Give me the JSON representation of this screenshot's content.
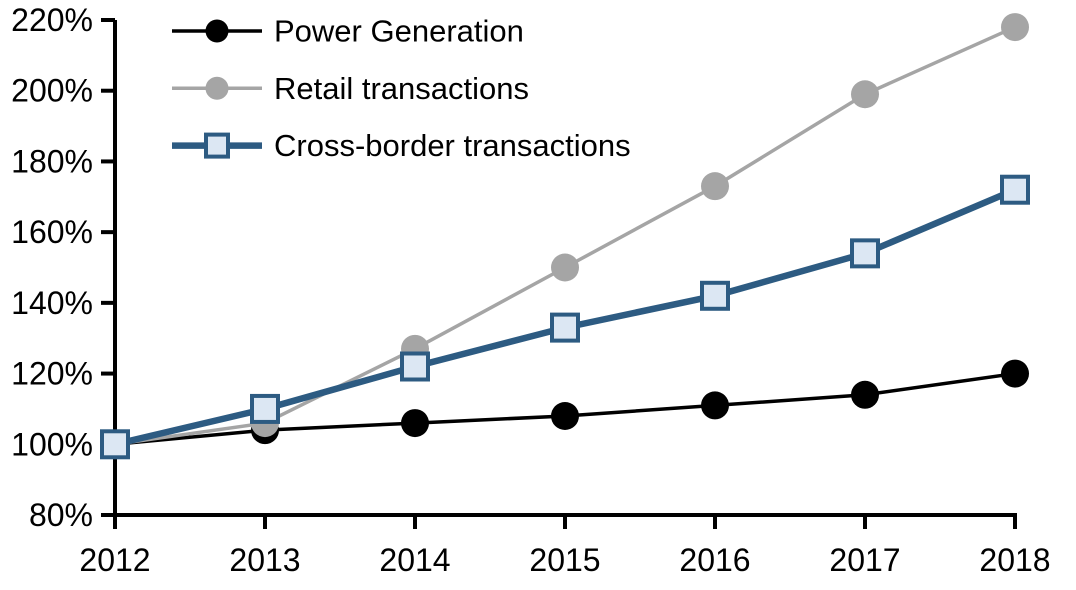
{
  "chart_data": {
    "type": "line",
    "title": "",
    "xlabel": "",
    "ylabel": "",
    "categories": [
      "2012",
      "2013",
      "2014",
      "2015",
      "2016",
      "2017",
      "2018"
    ],
    "series": [
      {
        "name": "Power Generation",
        "values": [
          100,
          104,
          106,
          108,
          111,
          114,
          120
        ],
        "color": "#000000",
        "marker": "circle",
        "marker_fill": "#000000",
        "line_width": 3.5
      },
      {
        "name": "Retail transactions",
        "values": [
          100,
          106,
          127,
          150,
          173,
          199,
          218
        ],
        "color": "#A5A5A5",
        "marker": "circle",
        "marker_fill": "#A5A5A5",
        "line_width": 3.5
      },
      {
        "name": "Cross-border transactions",
        "values": [
          100,
          110,
          122,
          133,
          142,
          154,
          172
        ],
        "color": "#2D5B82",
        "marker": "square",
        "marker_fill": "#DCE7F3",
        "line_width": 6.5
      }
    ],
    "ylim": [
      80,
      220
    ],
    "ytick_step": 20,
    "ytick_labels": [
      "80%",
      "100%",
      "120%",
      "140%",
      "160%",
      "180%",
      "200%",
      "220%"
    ],
    "grid": false,
    "legend_position": "top-left",
    "axis_color": "#000000",
    "background_color": "#FFFFFF"
  }
}
